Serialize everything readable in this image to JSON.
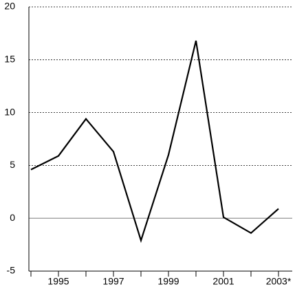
{
  "chart_data": {
    "type": "line",
    "categories": [
      null,
      "1995",
      null,
      "1997",
      null,
      "1999",
      null,
      "2001",
      null,
      "2003*"
    ],
    "values": [
      4.6,
      5.9,
      9.4,
      6.3,
      -2.1,
      6.0,
      16.8,
      0.1,
      -1.4,
      0.9
    ],
    "color": "#000000",
    "ylim": [
      -5,
      20
    ],
    "yticks": [
      -5,
      0,
      5,
      10,
      15,
      20
    ],
    "grid": true
  }
}
